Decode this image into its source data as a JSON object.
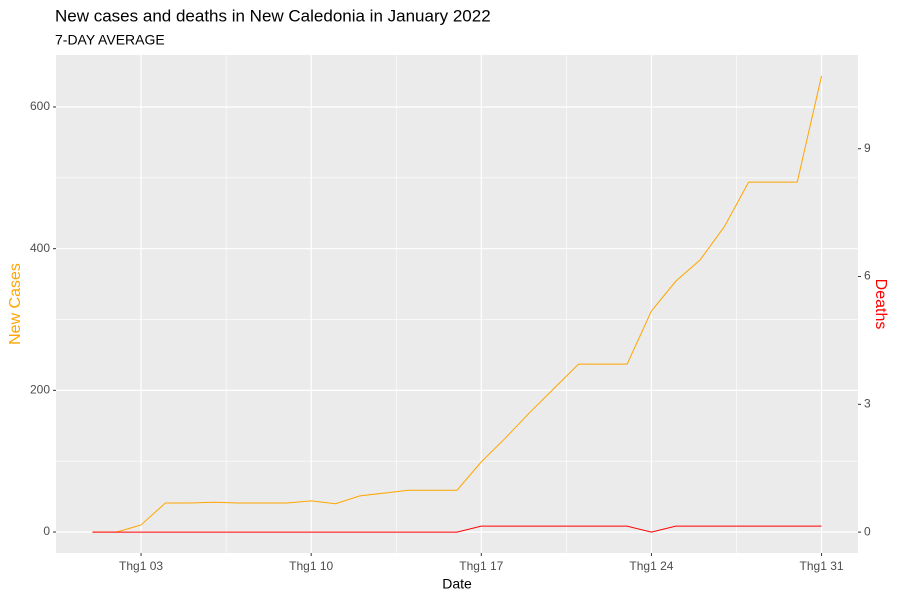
{
  "chart_data": {
    "type": "line",
    "title": "New cases and deaths in New Caledonia in January 2022",
    "subtitle": "7-DAY AVERAGE",
    "xlabel": "Date",
    "ylabel": "New Cases",
    "y2label": "Deaths",
    "x": [
      1,
      2,
      3,
      4,
      5,
      6,
      7,
      8,
      9,
      10,
      11,
      12,
      13,
      14,
      15,
      16,
      17,
      18,
      19,
      20,
      21,
      22,
      23,
      24,
      25,
      26,
      27,
      28,
      29,
      30,
      31
    ],
    "series": [
      {
        "name": "New Cases",
        "color": "#FFA500",
        "axis": "y",
        "values": [
          0,
          0,
          10,
          41,
          41,
          42,
          41,
          41,
          41,
          44,
          40,
          51,
          55,
          59,
          59,
          59,
          99,
          133,
          169,
          203,
          237,
          237,
          237,
          312,
          354,
          384,
          431,
          494,
          494,
          494,
          644
        ]
      },
      {
        "name": "Deaths",
        "color": "#FF0000",
        "axis": "y2",
        "values": [
          0,
          0,
          0,
          0,
          0,
          0,
          0,
          0,
          0,
          0,
          0,
          0,
          0,
          0,
          0,
          0,
          0.14,
          0.14,
          0.14,
          0.14,
          0.14,
          0.14,
          0.14,
          0,
          0.14,
          0.14,
          0.14,
          0.14,
          0.14,
          0.14,
          0.14
        ]
      }
    ],
    "xlim": [
      -0.5,
      32.5
    ],
    "xticks": [
      {
        "value": 3,
        "label": "Thg1 03"
      },
      {
        "value": 10,
        "label": "Thg1 10"
      },
      {
        "value": 17,
        "label": "Thg1 17"
      },
      {
        "value": 24,
        "label": "Thg1 24"
      },
      {
        "value": 31,
        "label": "Thg1 31"
      }
    ],
    "xminor": [
      6.5,
      13.5,
      20.5,
      27.5
    ],
    "ylim": [
      -29.6,
      673.4
    ],
    "yticks": [
      0,
      200,
      400,
      600
    ],
    "yminor": [
      100,
      300,
      500
    ],
    "y2lim": [
      -0.49,
      11.2
    ],
    "y2ticks": [
      0,
      3,
      6,
      9
    ],
    "grid": true
  }
}
